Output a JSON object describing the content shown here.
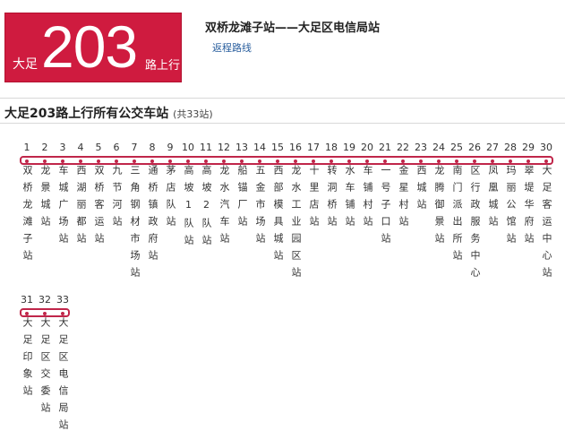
{
  "header": {
    "badge_city": "大足",
    "badge_number": "203",
    "badge_suffix": "路上行",
    "route_title": "双桥龙滩子站——大足区电信局站",
    "return_link": "返程路线"
  },
  "section": {
    "title": "大足203路上行所有公交车站",
    "count": "(共33站)"
  },
  "colors": {
    "accent": "#cf1b3f",
    "link": "#2a5f9e"
  },
  "stops": [
    {
      "idx": "1",
      "name": "双桥龙滩子站"
    },
    {
      "idx": "2",
      "name": "龙景城站"
    },
    {
      "idx": "3",
      "name": "车城广场站"
    },
    {
      "idx": "4",
      "name": "西湖丽都站"
    },
    {
      "idx": "5",
      "name": "双桥客运站"
    },
    {
      "idx": "6",
      "name": "九节河站"
    },
    {
      "idx": "7",
      "name": "三角钢材市场站"
    },
    {
      "idx": "8",
      "name": "通桥镇政府站"
    },
    {
      "idx": "9",
      "name": "茅店队站"
    },
    {
      "idx": "10",
      "name": "高坡1队站"
    },
    {
      "idx": "11",
      "name": "高坡2队站"
    },
    {
      "idx": "12",
      "name": "龙水汽车站"
    },
    {
      "idx": "13",
      "name": "船锚厂站"
    },
    {
      "idx": "14",
      "name": "五金市场站"
    },
    {
      "idx": "15",
      "name": "西部模具城站"
    },
    {
      "idx": "16",
      "name": "龙水工业园区站"
    },
    {
      "idx": "17",
      "name": "十里店站"
    },
    {
      "idx": "18",
      "name": "转洞桥站"
    },
    {
      "idx": "19",
      "name": "水车铺站"
    },
    {
      "idx": "20",
      "name": "车铺村站"
    },
    {
      "idx": "21",
      "name": "一号子口站"
    },
    {
      "idx": "22",
      "name": "金星村站"
    },
    {
      "idx": "23",
      "name": "西城站"
    },
    {
      "idx": "24",
      "name": "龙腾御景站"
    },
    {
      "idx": "25",
      "name": "南门派出所站"
    },
    {
      "idx": "26",
      "name": "区行政服务中心"
    },
    {
      "idx": "27",
      "name": "凤凰城站"
    },
    {
      "idx": "28",
      "name": "玛丽公馆站"
    },
    {
      "idx": "29",
      "name": "翠堤华府站"
    },
    {
      "idx": "30",
      "name": "大足客运中心站"
    },
    {
      "idx": "31",
      "name": "大足印象站"
    },
    {
      "idx": "32",
      "name": "大足区交委站"
    },
    {
      "idx": "33",
      "name": "大足区电信局站"
    }
  ]
}
